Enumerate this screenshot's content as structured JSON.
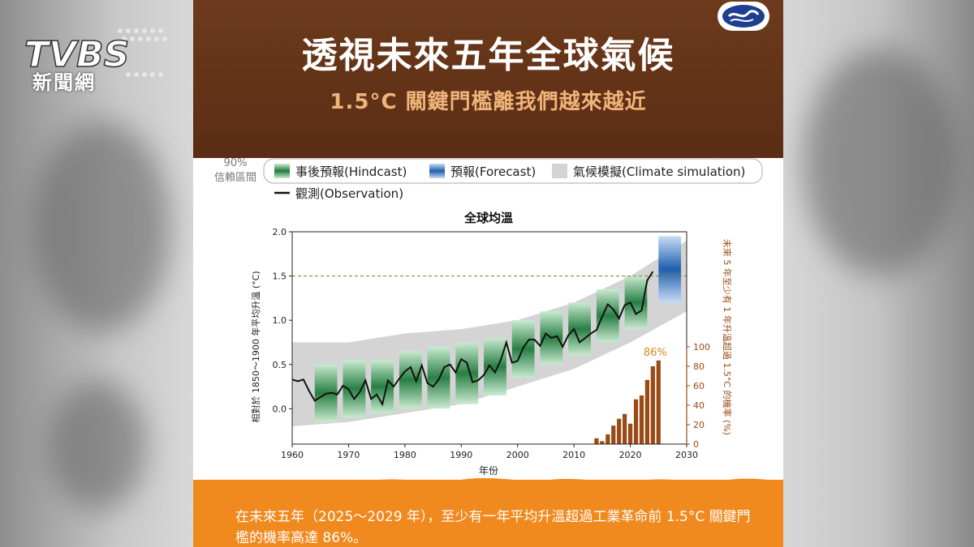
{
  "channel": {
    "logo_text": "TVBS",
    "sub_label": "新聞網"
  },
  "infographic": {
    "title": "透視未來五年全球氣候",
    "subtitle": "1.5°C 關鍵門檻離我們越來越近",
    "footer_text": "在未來五年（2025〜2029 年），至少有一年平均升溫超過工業革命前 1.5°C 關鍵門檻的機率高達 86%。"
  },
  "legend": {
    "confidence_label_line1": "90%",
    "confidence_label_line2": "信賴區間",
    "hindcast": "事後預報(Hindcast)",
    "forecast": "預報(Forecast)",
    "simulation": "氣候模擬(Climate simulation)",
    "observation": "觀測(Observation)"
  },
  "colors": {
    "header_brown": "#5f3017",
    "subtitle_orange": "#f0b47a",
    "footer_orange": "#f0891e",
    "hindcast_green": "#2e8b4a",
    "forecast_blue": "#2f6fb8",
    "simulation_gray": "#d4d4d4",
    "bar_brown": "#9a4a16",
    "threshold_line": "#8a7a2a"
  },
  "chart_data": {
    "type": "line",
    "title": "全球均溫",
    "xlabel": "年份",
    "ylabel": "相對於 1850〜1900 年平均升溫 (°C)",
    "y2label": "未來 5 年至少有 1 年升溫超過 1.5°C 的機率 (%)",
    "xlim": [
      1960,
      2030
    ],
    "ylim": [
      -0.4,
      2.0
    ],
    "y2lim": [
      0,
      100
    ],
    "x_ticks": [
      "1960",
      "1970",
      "1980",
      "1990",
      "2000",
      "2010",
      "2020",
      "2030"
    ],
    "y_ticks": [
      "0.0",
      "0.5",
      "1.0",
      "1.5",
      "2.0"
    ],
    "y2_ticks": [
      "0",
      "20",
      "40",
      "60",
      "80",
      "100"
    ],
    "threshold": 1.5,
    "observation": {
      "name": "觀測(Observation)",
      "x": [
        1960,
        1961,
        1962,
        1963,
        1964,
        1965,
        1966,
        1967,
        1968,
        1969,
        1970,
        1971,
        1972,
        1973,
        1974,
        1975,
        1976,
        1977,
        1978,
        1979,
        1980,
        1981,
        1982,
        1983,
        1984,
        1985,
        1986,
        1987,
        1988,
        1989,
        1990,
        1991,
        1992,
        1993,
        1994,
        1995,
        1996,
        1997,
        1998,
        1999,
        2000,
        2001,
        2002,
        2003,
        2004,
        2005,
        2006,
        2007,
        2008,
        2009,
        2010,
        2011,
        2012,
        2013,
        2014,
        2015,
        2016,
        2017,
        2018,
        2019,
        2020,
        2021,
        2022,
        2023,
        2024
      ],
      "y": [
        0.33,
        0.31,
        0.33,
        0.2,
        0.09,
        0.13,
        0.17,
        0.18,
        0.16,
        0.26,
        0.22,
        0.11,
        0.19,
        0.32,
        0.11,
        0.16,
        0.05,
        0.32,
        0.25,
        0.34,
        0.42,
        0.47,
        0.31,
        0.49,
        0.29,
        0.25,
        0.33,
        0.47,
        0.5,
        0.41,
        0.56,
        0.52,
        0.3,
        0.32,
        0.38,
        0.49,
        0.41,
        0.55,
        0.75,
        0.52,
        0.54,
        0.69,
        0.78,
        0.78,
        0.71,
        0.85,
        0.8,
        0.82,
        0.7,
        0.83,
        0.9,
        0.75,
        0.8,
        0.85,
        0.89,
        1.04,
        1.18,
        1.12,
        1.02,
        1.17,
        1.2,
        1.07,
        1.11,
        1.45,
        1.55
      ]
    },
    "hindcast_periods": [
      {
        "start": 1964,
        "end": 1968,
        "low": -0.15,
        "high": 0.5
      },
      {
        "start": 1969,
        "end": 1973,
        "low": -0.1,
        "high": 0.55
      },
      {
        "start": 1974,
        "end": 1978,
        "low": -0.05,
        "high": 0.55
      },
      {
        "start": 1979,
        "end": 1983,
        "low": 0.0,
        "high": 0.65
      },
      {
        "start": 1984,
        "end": 1988,
        "low": 0.0,
        "high": 0.7
      },
      {
        "start": 1989,
        "end": 1993,
        "low": 0.05,
        "high": 0.75
      },
      {
        "start": 1994,
        "end": 1998,
        "low": 0.15,
        "high": 0.8
      },
      {
        "start": 1999,
        "end": 2003,
        "low": 0.35,
        "high": 1.0
      },
      {
        "start": 2004,
        "end": 2008,
        "low": 0.5,
        "high": 1.1
      },
      {
        "start": 2009,
        "end": 2013,
        "low": 0.6,
        "high": 1.2
      },
      {
        "start": 2014,
        "end": 2018,
        "low": 0.75,
        "high": 1.35
      },
      {
        "start": 2019,
        "end": 2023,
        "low": 0.9,
        "high": 1.5
      }
    ],
    "forecast_period": {
      "start": 2025,
      "end": 2029,
      "low": 1.2,
      "high": 1.95
    },
    "simulation_band": {
      "x": [
        1960,
        1970,
        1980,
        1990,
        2000,
        2010,
        2020,
        2030
      ],
      "low": [
        -0.2,
        -0.15,
        -0.05,
        0.05,
        0.25,
        0.45,
        0.75,
        1.1
      ],
      "high": [
        0.75,
        0.75,
        0.85,
        0.9,
        1.0,
        1.2,
        1.5,
        1.9
      ]
    },
    "probability_bars": {
      "name": "未來 5 年至少有 1 年升溫超過 1.5°C 的機率 (%)",
      "x": [
        2014,
        2015,
        2016,
        2017,
        2018,
        2019,
        2020,
        2021,
        2022,
        2023,
        2024,
        2025
      ],
      "values": [
        6,
        3,
        10,
        19,
        26,
        31,
        21,
        46,
        50,
        66,
        80,
        86
      ]
    },
    "annotation": "86%"
  }
}
